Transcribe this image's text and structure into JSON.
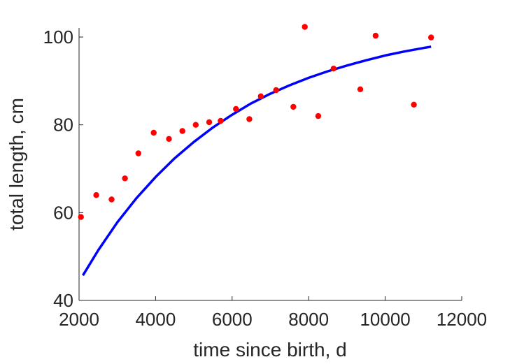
{
  "chart_data": {
    "type": "scatter",
    "xlabel": "time since birth, d",
    "ylabel": "total length, cm",
    "xlim": [
      2000,
      12000
    ],
    "ylim": [
      40,
      102
    ],
    "xticks": [
      2000,
      4000,
      6000,
      8000,
      10000,
      12000
    ],
    "yticks": [
      40,
      60,
      80,
      100
    ],
    "xtick_labels": [
      "2000",
      "4000",
      "6000",
      "8000",
      "10000",
      "12000"
    ],
    "ytick_labels": [
      "40",
      "60",
      "80",
      "100"
    ],
    "grid": false,
    "series": [
      {
        "kind": "scatter",
        "color": "#ff0000",
        "x": [
          2050,
          2450,
          2850,
          3200,
          3550,
          3950,
          4350,
          4700,
          5050,
          5400,
          5700,
          6100,
          6450,
          6750,
          7150,
          7600,
          7900,
          8250,
          8650,
          9350,
          9750,
          10750,
          11200
        ],
        "y": [
          59.0,
          64.0,
          63.0,
          67.8,
          73.5,
          78.2,
          76.8,
          78.6,
          80.0,
          80.6,
          80.9,
          83.6,
          81.3,
          86.5,
          87.9,
          84.1,
          102.3,
          82.0,
          92.8,
          88.1,
          100.3,
          84.6,
          99.9
        ]
      },
      {
        "kind": "line",
        "color": "#0000ff",
        "x": [
          2100,
          2500,
          3000,
          3500,
          4000,
          4500,
          5000,
          5500,
          6000,
          6500,
          7000,
          7500,
          8000,
          8500,
          9000,
          9500,
          10000,
          10500,
          11000,
          11200
        ],
        "y": [
          45.7,
          51.4,
          57.8,
          63.3,
          68.1,
          72.4,
          76.1,
          79.4,
          82.3,
          84.9,
          87.1,
          89.0,
          90.7,
          92.2,
          93.5,
          94.7,
          95.8,
          96.7,
          97.5,
          97.8
        ]
      }
    ]
  }
}
